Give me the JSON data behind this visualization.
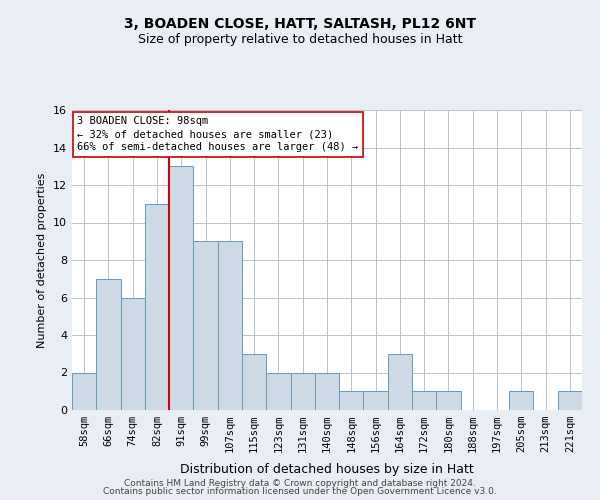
{
  "title1": "3, BOADEN CLOSE, HATT, SALTASH, PL12 6NT",
  "title2": "Size of property relative to detached houses in Hatt",
  "xlabel": "Distribution of detached houses by size in Hatt",
  "ylabel": "Number of detached properties",
  "bins": [
    "58sqm",
    "66sqm",
    "74sqm",
    "82sqm",
    "91sqm",
    "99sqm",
    "107sqm",
    "115sqm",
    "123sqm",
    "131sqm",
    "140sqm",
    "148sqm",
    "156sqm",
    "164sqm",
    "172sqm",
    "180sqm",
    "188sqm",
    "197sqm",
    "205sqm",
    "213sqm",
    "221sqm"
  ],
  "values": [
    2,
    7,
    6,
    11,
    13,
    9,
    9,
    3,
    2,
    2,
    2,
    1,
    1,
    3,
    1,
    1,
    0,
    0,
    1,
    0,
    1
  ],
  "bar_color": "#cdd9e5",
  "bar_edge_color": "#6699bb",
  "marker_line_color": "#cc0000",
  "marker_bin_index": 4,
  "annotation_line1": "3 BOADEN CLOSE: 98sqm",
  "annotation_line2": "← 32% of detached houses are smaller (23)",
  "annotation_line3": "66% of semi-detached houses are larger (48) →",
  "annotation_box_facecolor": "#ffffff",
  "annotation_box_edgecolor": "#cc0000",
  "ylim": [
    0,
    16
  ],
  "yticks": [
    0,
    2,
    4,
    6,
    8,
    10,
    12,
    14,
    16
  ],
  "fig_bg_color": "#e8eef4",
  "plot_bg_color": "#ffffff",
  "grid_color": "#b8c4d0",
  "title1_fontsize": 10,
  "title2_fontsize": 9,
  "ylabel_fontsize": 8,
  "xlabel_fontsize": 9,
  "tick_fontsize": 7.5,
  "footer1": "Contains HM Land Registry data © Crown copyright and database right 2024.",
  "footer2": "Contains public sector information licensed under the Open Government Licence v3.0.",
  "footer_fontsize": 6.5
}
